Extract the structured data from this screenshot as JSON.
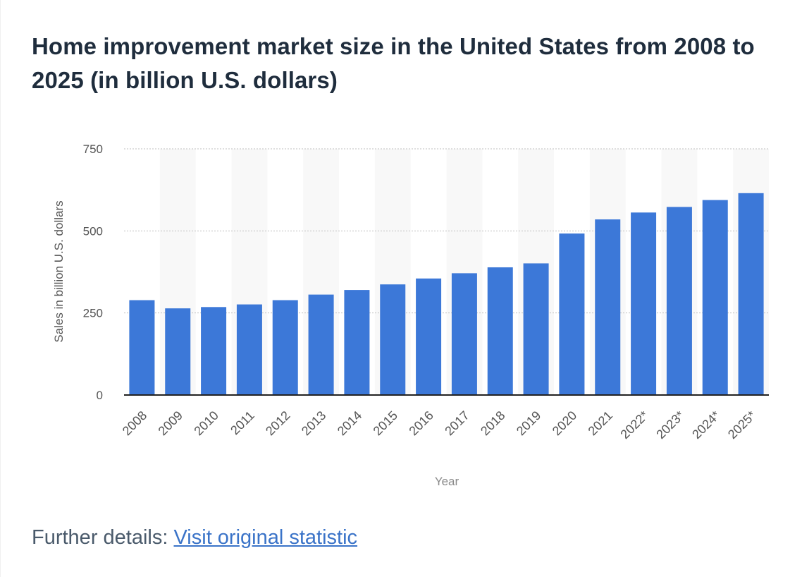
{
  "header": {
    "title": "Home improvement market size in the United States from 2008 to 2025 (in billion U.S. dollars)"
  },
  "footer": {
    "prefix": "Further details:",
    "link_label": "Visit original statistic"
  },
  "colors": {
    "bar": "#3c78d8",
    "band": "#f8f8f8",
    "grid": "#bfbfbf",
    "axis": "#222222",
    "tick_text": "#555555"
  },
  "chart_data": {
    "type": "bar",
    "title": "Home improvement market size in the United States from 2008 to 2025 (in billion U.S. dollars)",
    "xlabel": "Year",
    "ylabel": "Sales in billion U.S. dollars",
    "ylim": [
      0,
      750
    ],
    "yticks": [
      0,
      250,
      500,
      750
    ],
    "ytick_labels": [
      "0",
      "250",
      "500",
      "750"
    ],
    "grid": true,
    "categories": [
      "2008",
      "2009",
      "2010",
      "2011",
      "2012",
      "2013",
      "2014",
      "2015",
      "2016",
      "2017",
      "2018",
      "2019",
      "2020",
      "2021",
      "2022*",
      "2023*",
      "2024*",
      "2025*"
    ],
    "values": [
      289,
      264,
      268,
      276,
      289,
      306,
      320,
      337,
      355,
      371,
      389,
      401,
      492,
      535,
      556,
      573,
      594,
      615
    ]
  }
}
